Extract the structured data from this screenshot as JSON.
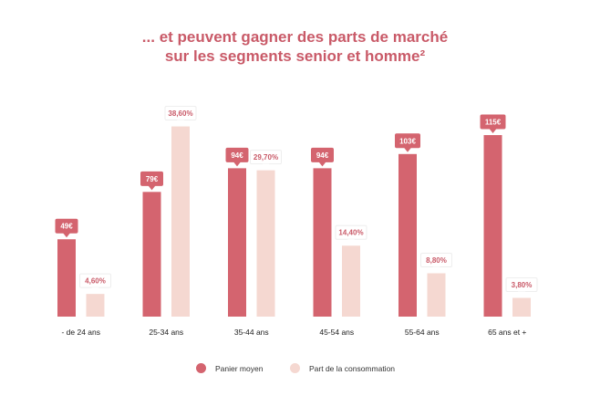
{
  "title_line1": "... et peuvent gagner des parts de marché",
  "title_line2": "sur les segments senior et homme²",
  "colors": {
    "title": "#c95a68",
    "panier": "#d4646f",
    "part": "#f5d8d1",
    "label_text": "#c95a68"
  },
  "chart_data": {
    "type": "bar",
    "categories": [
      "- de 24 ans",
      "25-34 ans",
      "35-44 ans",
      "45-54 ans",
      "55-64 ans",
      "65 ans et +"
    ],
    "series": [
      {
        "name": "Panier moyen",
        "values": [
          49,
          79,
          94,
          94,
          103,
          115
        ],
        "labels": [
          "49€",
          "79€",
          "94€",
          "94€",
          "103€",
          "115€"
        ]
      },
      {
        "name": "Part de la consommation",
        "values": [
          4.6,
          38.6,
          29.7,
          14.4,
          8.8,
          3.8
        ],
        "labels": [
          "4,60%",
          "38,60%",
          "29,70%",
          "14,40%",
          "8,80%",
          "3,80%"
        ]
      }
    ],
    "legend": [
      "Panier moyen",
      "Part de la consommation"
    ],
    "legend_position": "bottom",
    "grid": false
  }
}
